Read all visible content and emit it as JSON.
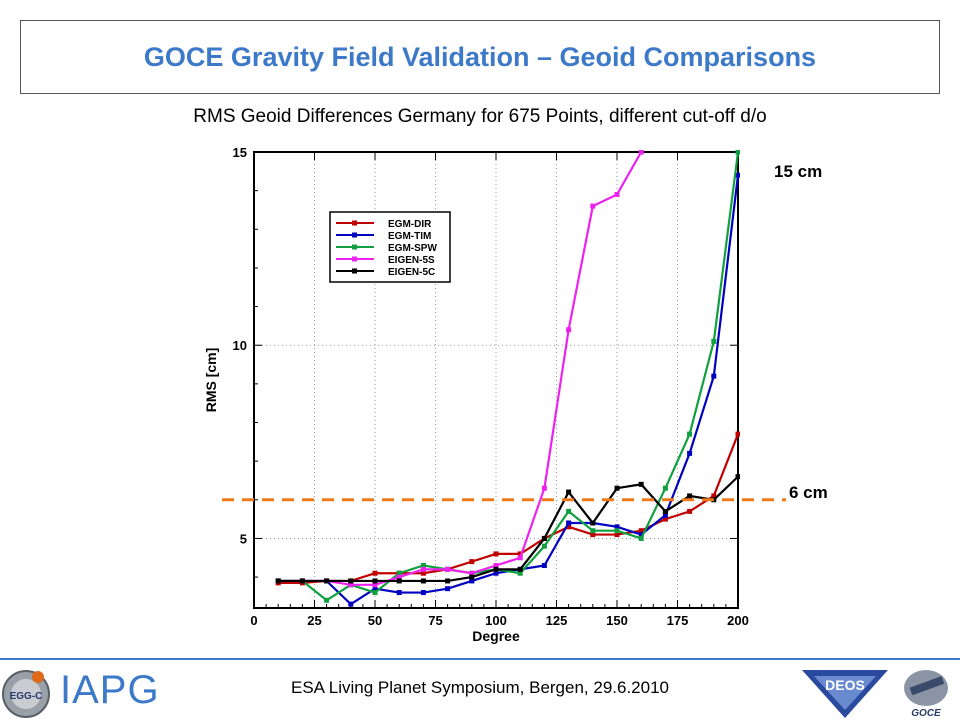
{
  "header": {
    "title": "GOCE Gravity Field Validation – Geoid Comparisons"
  },
  "subtitle": "RMS Geoid Differences Germany for 675 Points, different cut-off d/o",
  "annotations": {
    "top_label": "15 cm",
    "threshold_label": "6 cm",
    "threshold_value": 6,
    "threshold_color": "#ee7a1c"
  },
  "footer": {
    "event": "ESA Living Planet Symposium, Bergen, 29.6.2010",
    "org": "IAPG",
    "logo_left": "EGG-C",
    "logo_right_1": "DEOS",
    "logo_right_2": "GOCE"
  },
  "chart_data": {
    "type": "line",
    "xlabel": "Degree",
    "ylabel": "RMS [cm]",
    "xlim": [
      0,
      200
    ],
    "ylim": [
      3.2,
      15
    ],
    "xticks": [
      0,
      25,
      50,
      75,
      100,
      125,
      150,
      175,
      200
    ],
    "yticks": [
      5,
      10,
      15
    ],
    "grid": true,
    "legend_position": "top-left",
    "x": [
      10,
      20,
      30,
      40,
      50,
      60,
      70,
      80,
      90,
      100,
      110,
      120,
      130,
      140,
      150,
      160,
      170,
      180,
      190,
      200
    ],
    "series": [
      {
        "name": "EGM-DIR",
        "color": "#c00000",
        "values": [
          3.85,
          3.85,
          3.9,
          3.9,
          4.1,
          4.1,
          4.1,
          4.2,
          4.4,
          4.6,
          4.6,
          5.0,
          5.3,
          5.1,
          5.1,
          5.2,
          5.5,
          5.7,
          6.1,
          7.7
        ]
      },
      {
        "name": "EGM-TIM",
        "color": "#0000c0",
        "values": [
          3.9,
          3.9,
          3.9,
          3.3,
          3.7,
          3.6,
          3.6,
          3.7,
          3.9,
          4.1,
          4.2,
          4.3,
          5.4,
          5.4,
          5.3,
          5.1,
          5.6,
          7.2,
          9.2,
          14.4
        ]
      },
      {
        "name": "EGM-SPW",
        "color": "#10a040",
        "values": [
          3.9,
          3.9,
          3.4,
          3.8,
          3.6,
          4.1,
          4.3,
          4.2,
          4.1,
          4.2,
          4.1,
          4.8,
          5.7,
          5.2,
          5.2,
          5.0,
          6.3,
          7.7,
          10.1,
          15.0
        ]
      },
      {
        "name": "EIGEN-5S",
        "color": "#ee22ee",
        "values": [
          3.9,
          3.9,
          3.9,
          3.8,
          3.8,
          4.0,
          4.2,
          4.2,
          4.1,
          4.3,
          4.5,
          6.3,
          10.4,
          13.6,
          13.9,
          15.0,
          null,
          null,
          null,
          null
        ]
      },
      {
        "name": "EIGEN-5C",
        "color": "#000000",
        "values": [
          3.9,
          3.9,
          3.9,
          3.9,
          3.9,
          3.9,
          3.9,
          3.9,
          4.0,
          4.2,
          4.2,
          5.0,
          6.2,
          5.4,
          6.3,
          6.4,
          5.7,
          6.1,
          6.0,
          6.6
        ]
      }
    ]
  }
}
